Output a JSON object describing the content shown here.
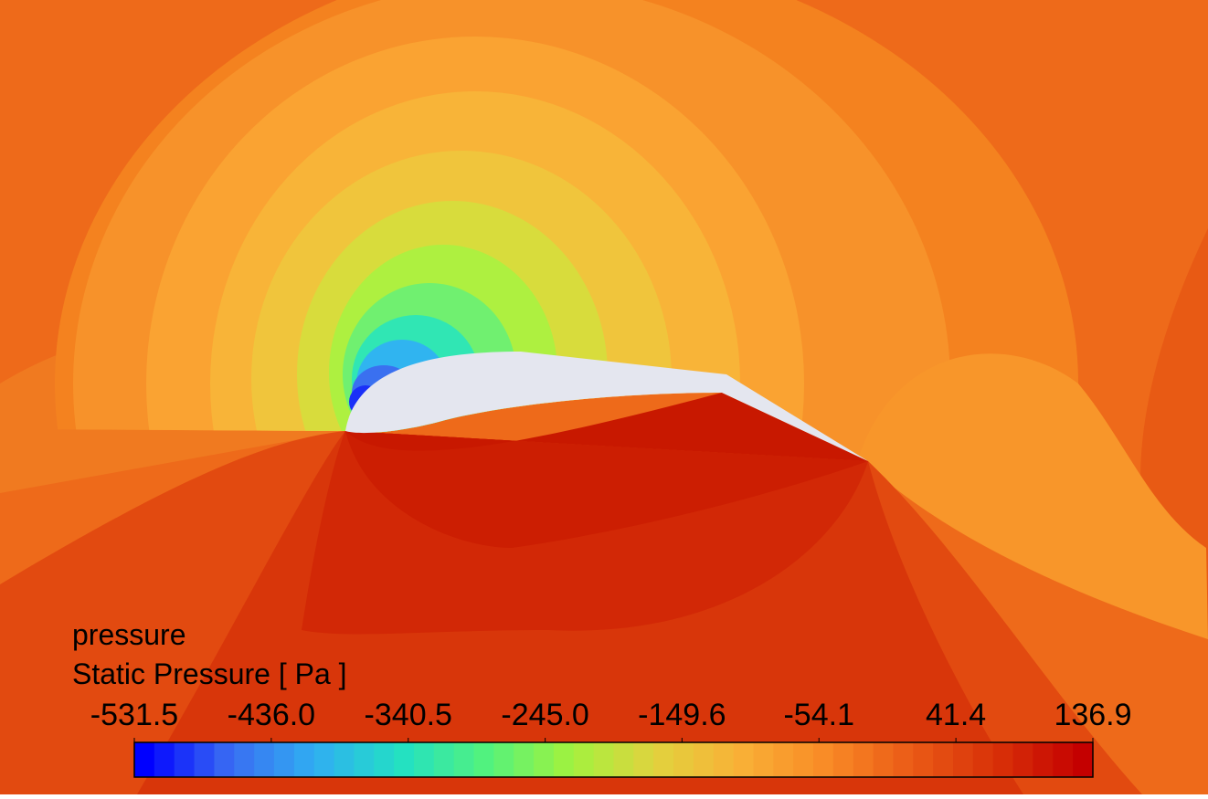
{
  "chart_data": {
    "type": "colorbar",
    "title": "pressure",
    "subtitle": "Static Pressure [ Pa ]",
    "clim": [
      -531.5,
      136.9
    ],
    "levels": 48,
    "colormap": [
      "#0000ff",
      "#3a6cf2",
      "#30aef2",
      "#22e0c4",
      "#52f27e",
      "#a2f23e",
      "#e2d23e",
      "#f9b036",
      "#f98a26",
      "#ea5a16",
      "#d83008",
      "#c40000"
    ],
    "ticks": [
      -531.5,
      {
        "value": -436.0,
        "label": "-436.0"
      },
      -340.5,
      {
        "value": -245.0,
        "label": "-245.0"
      },
      -149.6,
      -54.1,
      41.4,
      136.9
    ]
  }
}
